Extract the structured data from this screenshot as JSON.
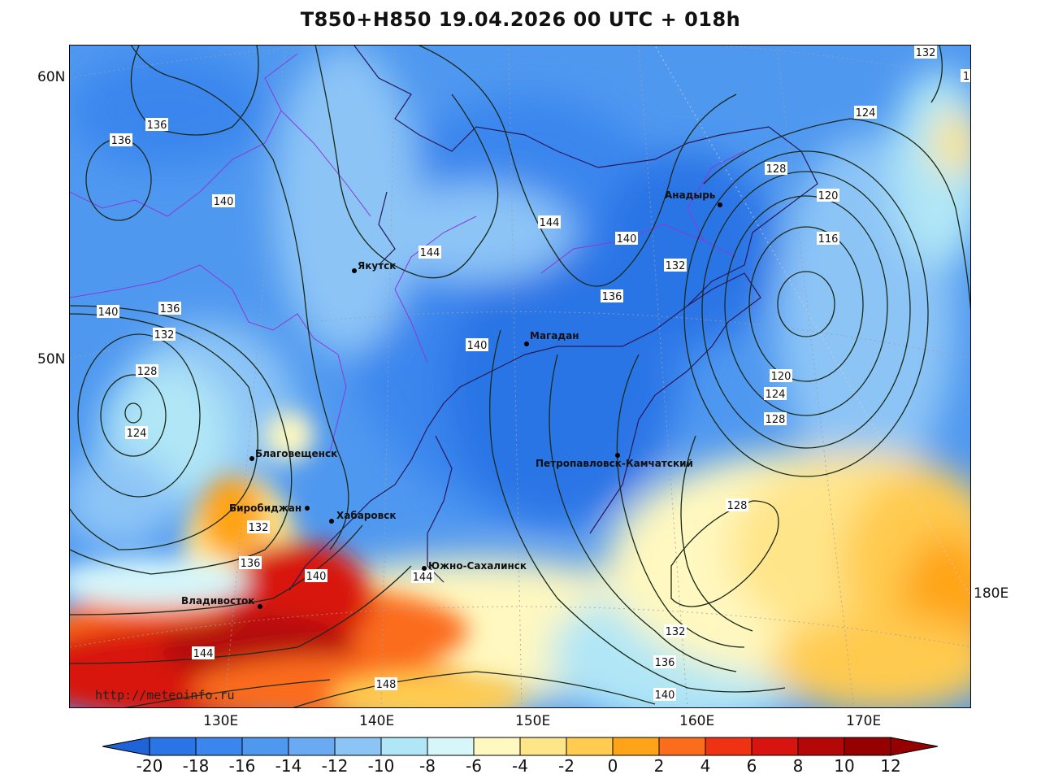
{
  "title": "T850+H850 19.04.2026 00 UTC + 018h",
  "source_url": "http://meteoinfo.ru",
  "lat_labels": [
    "60N",
    "50N"
  ],
  "lon_labels": [
    "130E",
    "140E",
    "150E",
    "160E",
    "170E",
    "180E"
  ],
  "cities": [
    {
      "name": "Анадырь"
    },
    {
      "name": "Якутск"
    },
    {
      "name": "Магадан"
    },
    {
      "name": "Благовещенск"
    },
    {
      "name": "Петропавловск-Камчатский"
    },
    {
      "name": "Биробиджан"
    },
    {
      "name": "Хабаровск"
    },
    {
      "name": "Южно-Сахалинск"
    },
    {
      "name": "Владивосток"
    }
  ],
  "contour_labels": [
    "132",
    "1",
    "124",
    "128",
    "120",
    "116",
    "120",
    "124",
    "128",
    "128",
    "132",
    "136",
    "140",
    "136",
    "136",
    "140",
    "144",
    "144",
    "140",
    "140",
    "132",
    "136",
    "140",
    "136",
    "132",
    "128",
    "124",
    "132",
    "136",
    "140",
    "144",
    "144",
    "148"
  ],
  "colorbar": {
    "ticks": [
      "-20",
      "-18",
      "-16",
      "-14",
      "-12",
      "-10",
      "-8",
      "-6",
      "-4",
      "-2",
      "0",
      "2",
      "4",
      "6",
      "8",
      "10",
      "12"
    ],
    "colors": [
      "#1e64d8",
      "#2a74e6",
      "#3a86ee",
      "#4f98f0",
      "#6aaaf2",
      "#8cc4f6",
      "#b0e6f6",
      "#d6f6fa",
      "#fff8c0",
      "#ffe58a",
      "#ffcb50",
      "#ffa418",
      "#fb6c1c",
      "#f03214",
      "#d81410",
      "#b40808",
      "#960000"
    ],
    "lower_extend_color": "#1e64d8",
    "upper_extend_color": "#960000"
  }
}
